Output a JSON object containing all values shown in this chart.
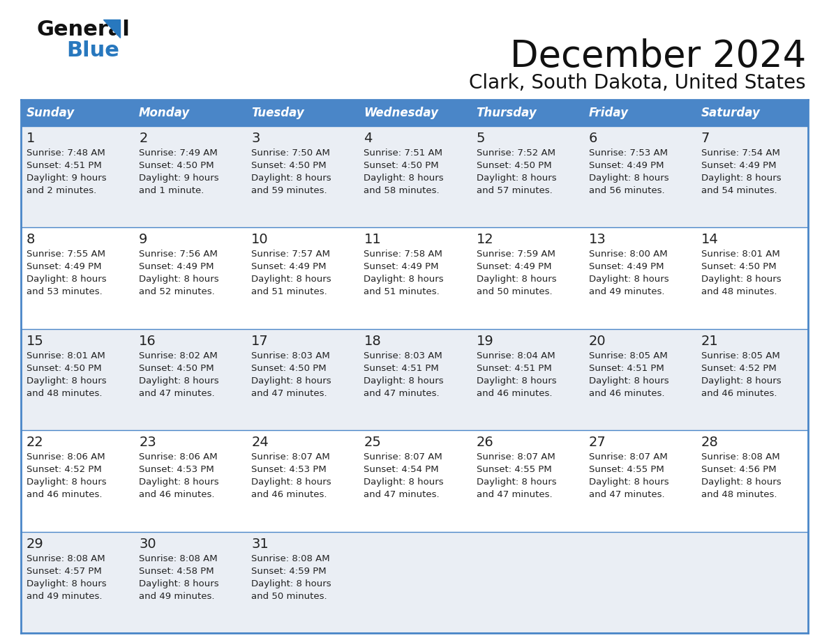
{
  "title": "December 2024",
  "subtitle": "Clark, South Dakota, United States",
  "days_of_week": [
    "Sunday",
    "Monday",
    "Tuesday",
    "Wednesday",
    "Thursday",
    "Friday",
    "Saturday"
  ],
  "header_bg": "#4A86C8",
  "header_text": "#FFFFFF",
  "row_bg_odd": "#EAEEF4",
  "row_bg_even": "#FFFFFF",
  "border_color": "#4A86C8",
  "day_num_color": "#222222",
  "text_color": "#222222",
  "title_color": "#111111",
  "logo_general_color": "#111111",
  "logo_blue_color": "#2878BE",
  "week_rows": [
    [
      {
        "day": 1,
        "sunrise": "7:48 AM",
        "sunset": "4:51 PM",
        "daylight": "9 hours",
        "daylight2": "and 2 minutes."
      },
      {
        "day": 2,
        "sunrise": "7:49 AM",
        "sunset": "4:50 PM",
        "daylight": "9 hours",
        "daylight2": "and 1 minute."
      },
      {
        "day": 3,
        "sunrise": "7:50 AM",
        "sunset": "4:50 PM",
        "daylight": "8 hours",
        "daylight2": "and 59 minutes."
      },
      {
        "day": 4,
        "sunrise": "7:51 AM",
        "sunset": "4:50 PM",
        "daylight": "8 hours",
        "daylight2": "and 58 minutes."
      },
      {
        "day": 5,
        "sunrise": "7:52 AM",
        "sunset": "4:50 PM",
        "daylight": "8 hours",
        "daylight2": "and 57 minutes."
      },
      {
        "day": 6,
        "sunrise": "7:53 AM",
        "sunset": "4:49 PM",
        "daylight": "8 hours",
        "daylight2": "and 56 minutes."
      },
      {
        "day": 7,
        "sunrise": "7:54 AM",
        "sunset": "4:49 PM",
        "daylight": "8 hours",
        "daylight2": "and 54 minutes."
      }
    ],
    [
      {
        "day": 8,
        "sunrise": "7:55 AM",
        "sunset": "4:49 PM",
        "daylight": "8 hours",
        "daylight2": "and 53 minutes."
      },
      {
        "day": 9,
        "sunrise": "7:56 AM",
        "sunset": "4:49 PM",
        "daylight": "8 hours",
        "daylight2": "and 52 minutes."
      },
      {
        "day": 10,
        "sunrise": "7:57 AM",
        "sunset": "4:49 PM",
        "daylight": "8 hours",
        "daylight2": "and 51 minutes."
      },
      {
        "day": 11,
        "sunrise": "7:58 AM",
        "sunset": "4:49 PM",
        "daylight": "8 hours",
        "daylight2": "and 51 minutes."
      },
      {
        "day": 12,
        "sunrise": "7:59 AM",
        "sunset": "4:49 PM",
        "daylight": "8 hours",
        "daylight2": "and 50 minutes."
      },
      {
        "day": 13,
        "sunrise": "8:00 AM",
        "sunset": "4:49 PM",
        "daylight": "8 hours",
        "daylight2": "and 49 minutes."
      },
      {
        "day": 14,
        "sunrise": "8:01 AM",
        "sunset": "4:50 PM",
        "daylight": "8 hours",
        "daylight2": "and 48 minutes."
      }
    ],
    [
      {
        "day": 15,
        "sunrise": "8:01 AM",
        "sunset": "4:50 PM",
        "daylight": "8 hours",
        "daylight2": "and 48 minutes."
      },
      {
        "day": 16,
        "sunrise": "8:02 AM",
        "sunset": "4:50 PM",
        "daylight": "8 hours",
        "daylight2": "and 47 minutes."
      },
      {
        "day": 17,
        "sunrise": "8:03 AM",
        "sunset": "4:50 PM",
        "daylight": "8 hours",
        "daylight2": "and 47 minutes."
      },
      {
        "day": 18,
        "sunrise": "8:03 AM",
        "sunset": "4:51 PM",
        "daylight": "8 hours",
        "daylight2": "and 47 minutes."
      },
      {
        "day": 19,
        "sunrise": "8:04 AM",
        "sunset": "4:51 PM",
        "daylight": "8 hours",
        "daylight2": "and 46 minutes."
      },
      {
        "day": 20,
        "sunrise": "8:05 AM",
        "sunset": "4:51 PM",
        "daylight": "8 hours",
        "daylight2": "and 46 minutes."
      },
      {
        "day": 21,
        "sunrise": "8:05 AM",
        "sunset": "4:52 PM",
        "daylight": "8 hours",
        "daylight2": "and 46 minutes."
      }
    ],
    [
      {
        "day": 22,
        "sunrise": "8:06 AM",
        "sunset": "4:52 PM",
        "daylight": "8 hours",
        "daylight2": "and 46 minutes."
      },
      {
        "day": 23,
        "sunrise": "8:06 AM",
        "sunset": "4:53 PM",
        "daylight": "8 hours",
        "daylight2": "and 46 minutes."
      },
      {
        "day": 24,
        "sunrise": "8:07 AM",
        "sunset": "4:53 PM",
        "daylight": "8 hours",
        "daylight2": "and 46 minutes."
      },
      {
        "day": 25,
        "sunrise": "8:07 AM",
        "sunset": "4:54 PM",
        "daylight": "8 hours",
        "daylight2": "and 47 minutes."
      },
      {
        "day": 26,
        "sunrise": "8:07 AM",
        "sunset": "4:55 PM",
        "daylight": "8 hours",
        "daylight2": "and 47 minutes."
      },
      {
        "day": 27,
        "sunrise": "8:07 AM",
        "sunset": "4:55 PM",
        "daylight": "8 hours",
        "daylight2": "and 47 minutes."
      },
      {
        "day": 28,
        "sunrise": "8:08 AM",
        "sunset": "4:56 PM",
        "daylight": "8 hours",
        "daylight2": "and 48 minutes."
      }
    ],
    [
      {
        "day": 29,
        "sunrise": "8:08 AM",
        "sunset": "4:57 PM",
        "daylight": "8 hours",
        "daylight2": "and 49 minutes."
      },
      {
        "day": 30,
        "sunrise": "8:08 AM",
        "sunset": "4:58 PM",
        "daylight": "8 hours",
        "daylight2": "and 49 minutes."
      },
      {
        "day": 31,
        "sunrise": "8:08 AM",
        "sunset": "4:59 PM",
        "daylight": "8 hours",
        "daylight2": "and 50 minutes."
      },
      null,
      null,
      null,
      null
    ]
  ]
}
